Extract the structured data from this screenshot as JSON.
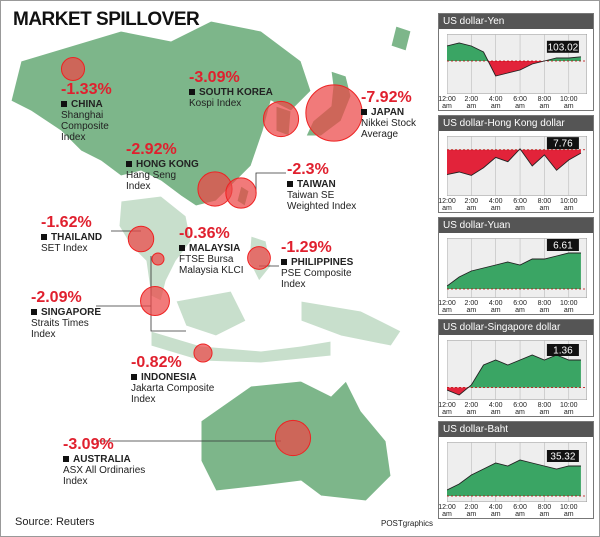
{
  "title": "MARKET SPILLOVER",
  "source": "Source: Reuters",
  "credit": "POSTgraphics",
  "markets": [
    {
      "change": -1.33,
      "change_label": "-1.33%",
      "name": "CHINA",
      "index": "Shanghai Composite Index"
    },
    {
      "change": -3.09,
      "change_label": "-3.09%",
      "name": "SOUTH KOREA",
      "index": "Kospi Index"
    },
    {
      "change": -7.92,
      "change_label": "-7.92%",
      "name": "JAPAN",
      "index": "Nikkei Stock Average"
    },
    {
      "change": -2.92,
      "change_label": "-2.92%",
      "name": "HONG KONG",
      "index": "Hang Seng Index"
    },
    {
      "change": -2.3,
      "change_label": "-2.3%",
      "name": "TAIWAN",
      "index": "Taiwan SE Weighted Index"
    },
    {
      "change": -1.62,
      "change_label": "-1.62%",
      "name": "THAILAND",
      "index": "SET Index"
    },
    {
      "change": -0.36,
      "change_label": "-0.36%",
      "name": "MALAYSIA",
      "index": "FTSE Bursa Malaysia KLCI"
    },
    {
      "change": -1.29,
      "change_label": "-1.29%",
      "name": "PHILIPPINES",
      "index": "PSE Composite Index"
    },
    {
      "change": -2.09,
      "change_label": "-2.09%",
      "name": "SINGAPORE",
      "index": "Straits Times Index"
    },
    {
      "change": -0.82,
      "change_label": "-0.82%",
      "name": "INDONESIA",
      "index": "Jakarta Composite Index"
    },
    {
      "change": -3.09,
      "change_label": "-3.09%",
      "name": "AUSTRALIA",
      "index": "ASX All Ordinaries Index"
    }
  ],
  "charts": [
    {
      "type": "line",
      "title": "US dollar-Yen",
      "x": [
        0,
        1,
        2,
        3,
        4,
        5,
        6,
        7,
        8,
        9,
        10,
        11
      ],
      "values": [
        103.2,
        103.25,
        103.2,
        103.1,
        102.7,
        102.75,
        102.8,
        102.9,
        102.95,
        103.0,
        103.0,
        103.02
      ],
      "reference": 102.95,
      "xlim": [
        0,
        11.5
      ],
      "ylim": [
        102.4,
        103.4
      ],
      "xticks": [
        {
          "value": 0,
          "label": "12:00 am"
        },
        {
          "value": 2,
          "label": "2:00 am"
        },
        {
          "value": 4,
          "label": "4:00 am"
        },
        {
          "value": 6,
          "label": "6:00 am"
        },
        {
          "value": 8,
          "label": "8:00 am"
        },
        {
          "value": 10,
          "label": "10:00 am"
        }
      ],
      "colors": {
        "up": "#3aa564",
        "down": "#e2233a"
      }
    },
    {
      "type": "line",
      "title": "US dollar-Hong Kong dollar",
      "x": [
        0,
        1,
        2,
        3,
        4,
        5,
        6,
        7,
        8,
        9,
        10,
        11
      ],
      "values": [
        7.7575,
        7.7578,
        7.7574,
        7.7583,
        7.7595,
        7.759,
        7.7605,
        7.7585,
        7.7598,
        7.758,
        7.7592,
        7.76
      ],
      "reference": 7.7604,
      "xlim": [
        0,
        11.5
      ],
      "ylim": [
        7.755,
        7.762
      ],
      "xticks": [
        {
          "value": 0,
          "label": "12:00 am"
        },
        {
          "value": 2,
          "label": "2:00 am"
        },
        {
          "value": 4,
          "label": "4:00 am"
        },
        {
          "value": 6,
          "label": "6:00 am"
        },
        {
          "value": 8,
          "label": "8:00 am"
        },
        {
          "value": 10,
          "label": "10:00 am"
        }
      ],
      "colors": {
        "up": "#3aa564",
        "down": "#e2233a"
      }
    },
    {
      "type": "line",
      "title": "US dollar-Yuan",
      "x": [
        0,
        1,
        2,
        3,
        4,
        5,
        6,
        7,
        8,
        9,
        10,
        11
      ],
      "values": [
        6.599,
        6.602,
        6.604,
        6.605,
        6.606,
        6.607,
        6.606,
        6.608,
        6.608,
        6.609,
        6.61,
        6.61
      ],
      "reference": 6.598,
      "xlim": [
        0,
        11.5
      ],
      "ylim": [
        6.595,
        6.615
      ],
      "xticks": [
        {
          "value": 0,
          "label": "12:00 am"
        },
        {
          "value": 2,
          "label": "2:00 am"
        },
        {
          "value": 4,
          "label": "4:00 am"
        },
        {
          "value": 6,
          "label": "6:00 am"
        },
        {
          "value": 8,
          "label": "8:00 am"
        },
        {
          "value": 10,
          "label": "10:00 am"
        }
      ],
      "colors": {
        "up": "#3aa564",
        "down": "#e2233a"
      }
    },
    {
      "type": "line",
      "title": "US dollar-Singapore dollar",
      "x": [
        0,
        1,
        2,
        3,
        4,
        5,
        6,
        7,
        8,
        9,
        10,
        11
      ],
      "values": [
        1.354,
        1.353,
        1.355,
        1.359,
        1.36,
        1.359,
        1.36,
        1.361,
        1.36,
        1.361,
        1.36,
        1.36
      ],
      "reference": 1.3545,
      "xlim": [
        0,
        11.5
      ],
      "ylim": [
        1.352,
        1.364
      ],
      "xticks": [
        {
          "value": 0,
          "label": "12:00 am"
        },
        {
          "value": 2,
          "label": "2:00 am"
        },
        {
          "value": 4,
          "label": "4:00 am"
        },
        {
          "value": 6,
          "label": "6:00 am"
        },
        {
          "value": 8,
          "label": "8:00 am"
        },
        {
          "value": 10,
          "label": "10:00 am"
        }
      ],
      "colors": {
        "up": "#3aa564",
        "down": "#e2233a"
      }
    },
    {
      "type": "line",
      "title": "US dollar-Baht",
      "x": [
        0,
        1,
        2,
        3,
        4,
        5,
        6,
        7,
        8,
        9,
        10,
        11
      ],
      "values": [
        35.24,
        35.26,
        35.29,
        35.31,
        35.33,
        35.32,
        35.34,
        35.33,
        35.32,
        35.31,
        35.32,
        35.32
      ],
      "reference": 35.22,
      "xlim": [
        0,
        11.5
      ],
      "ylim": [
        35.2,
        35.4
      ],
      "xticks": [
        {
          "value": 0,
          "label": "12:00 am"
        },
        {
          "value": 2,
          "label": "2:00 am"
        },
        {
          "value": 4,
          "label": "4:00 am"
        },
        {
          "value": 6,
          "label": "6:00 am"
        },
        {
          "value": 8,
          "label": "8:00 am"
        },
        {
          "value": 10,
          "label": "10:00 am"
        }
      ],
      "colors": {
        "up": "#3aa564",
        "down": "#e2233a"
      }
    }
  ]
}
